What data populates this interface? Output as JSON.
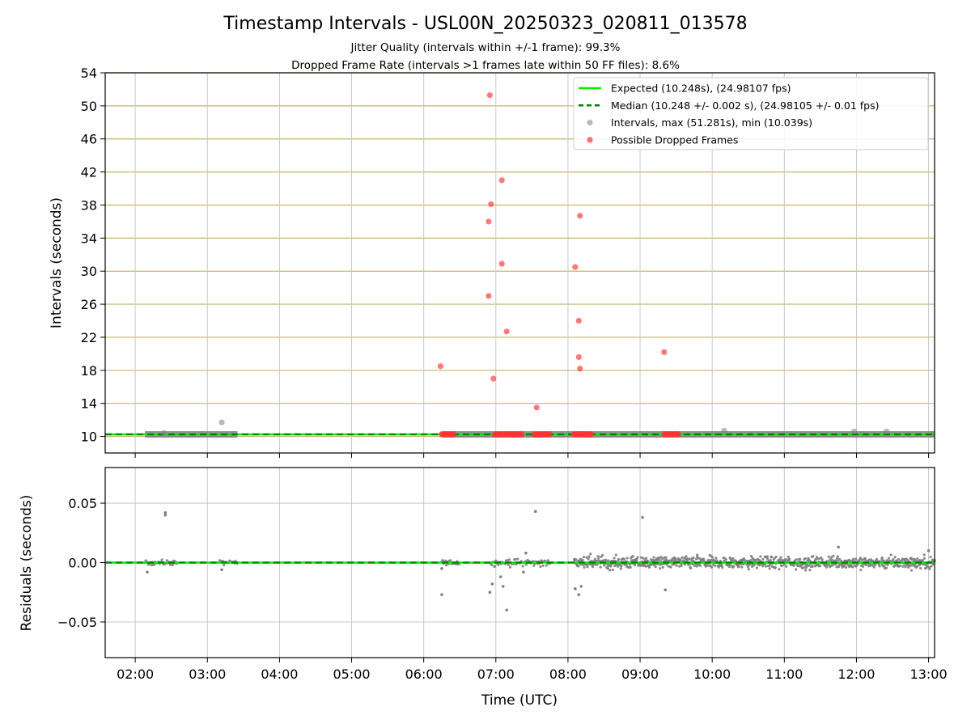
{
  "title": "Timestamp Intervals - USL00N_20250323_020811_013578",
  "subtitle_1": "Jitter Quality (intervals within +/-1 frame): 99.3%",
  "subtitle_2": "Dropped Frame Rate (intervals >1 frames late within 50 FF files): 8.6%",
  "colors": {
    "expected": "#00ee00",
    "median": "#008000",
    "intervals": "#808080",
    "dropped": "#ff3333",
    "hgrid": "#c8b46e",
    "vgrid": "#c8c8c8"
  },
  "chart_data": [
    {
      "type": "scatter",
      "ylabel": "Intervals (seconds)",
      "xlim": [
        "01:35",
        "13:05"
      ],
      "ylim": [
        8,
        54
      ],
      "yticks": [
        "10",
        "14",
        "18",
        "22",
        "26",
        "30",
        "34",
        "38",
        "42",
        "46",
        "50",
        "54"
      ],
      "xticks": [
        "02:00",
        "03:00",
        "04:00",
        "05:00",
        "06:00",
        "07:00",
        "08:00",
        "09:00",
        "10:00",
        "11:00",
        "12:00",
        "13:00"
      ],
      "grid": true,
      "legend_position": "top-right",
      "reference_lines": [
        {
          "name": "Expected (10.248s), (24.98107 fps)",
          "y": 10.248,
          "style": "solid",
          "color": "#00ee00"
        },
        {
          "name": "Median (10.248 +/- 0.002 s), (24.98105 +/- 0.01 fps)",
          "y": 10.248,
          "style": "dashed",
          "color": "#008000"
        }
      ],
      "series": [
        {
          "name": "Intervals, max (51.281s), min (10.039s)",
          "color": "#808080",
          "segments": [
            [
              "02:08",
              "03:25"
            ],
            [
              "06:15",
              "13:05"
            ]
          ],
          "segment_y": 10.248,
          "outliers": [
            {
              "x": "02:24",
              "y": 10.4
            },
            {
              "x": "03:12",
              "y": 11.7
            },
            {
              "x": "10:10",
              "y": 10.7
            },
            {
              "x": "11:58",
              "y": 10.6
            },
            {
              "x": "12:25",
              "y": 10.6
            }
          ]
        },
        {
          "name": "Possible Dropped Frames",
          "color": "#ff3333",
          "clusters": [
            [
              "06:15",
              "06:25"
            ],
            [
              "06:59",
              "07:22"
            ],
            [
              "07:32",
              "07:45"
            ],
            [
              "08:05",
              "08:20"
            ],
            [
              "09:20",
              "09:32"
            ]
          ],
          "cluster_y": 10.25,
          "points": [
            {
              "x": "06:55",
              "y": 51.3
            },
            {
              "x": "07:05",
              "y": 41.0
            },
            {
              "x": "06:56",
              "y": 38.1
            },
            {
              "x": "06:54",
              "y": 36.0
            },
            {
              "x": "08:10",
              "y": 36.7
            },
            {
              "x": "07:05",
              "y": 30.9
            },
            {
              "x": "08:06",
              "y": 30.5
            },
            {
              "x": "06:54",
              "y": 27.0
            },
            {
              "x": "08:09",
              "y": 24.0
            },
            {
              "x": "07:09",
              "y": 22.7
            },
            {
              "x": "09:20",
              "y": 20.2
            },
            {
              "x": "08:09",
              "y": 19.6
            },
            {
              "x": "06:14",
              "y": 18.5
            },
            {
              "x": "08:10",
              "y": 18.2
            },
            {
              "x": "06:58",
              "y": 17.0
            },
            {
              "x": "07:34",
              "y": 13.5
            }
          ]
        }
      ]
    },
    {
      "type": "scatter",
      "xlabel": "Time (UTC)",
      "ylabel": "Residuals (seconds)",
      "xlim": [
        "01:35",
        "13:05"
      ],
      "ylim": [
        -0.08,
        0.08
      ],
      "yticks": [
        "0.05",
        "0.00",
        "−0.05"
      ],
      "xticks": [
        "02:00",
        "03:00",
        "04:00",
        "05:00",
        "06:00",
        "07:00",
        "08:00",
        "09:00",
        "10:00",
        "11:00",
        "12:00",
        "13:00"
      ],
      "grid": true,
      "reference_lines": [
        {
          "y": 0,
          "style": "solid",
          "color": "#00ee00"
        },
        {
          "y": 0,
          "style": "dashed",
          "color": "#008000"
        }
      ],
      "series": [
        {
          "color": "#808080",
          "bands": [
            {
              "from": "02:08",
              "to": "02:35",
              "spread": 0.002
            },
            {
              "from": "03:10",
              "to": "03:25",
              "spread": 0.002
            },
            {
              "from": "06:15",
              "to": "06:30",
              "spread": 0.002
            },
            {
              "from": "06:55",
              "to": "07:45",
              "spread": 0.003
            },
            {
              "from": "08:05",
              "to": "13:05",
              "spread": 0.005
            }
          ],
          "outliers": [
            {
              "x": "02:10",
              "y": -0.008
            },
            {
              "x": "02:25",
              "y": 0.042
            },
            {
              "x": "02:25",
              "y": 0.04
            },
            {
              "x": "03:12",
              "y": -0.006
            },
            {
              "x": "06:15",
              "y": -0.027
            },
            {
              "x": "06:15",
              "y": -0.005
            },
            {
              "x": "06:55",
              "y": -0.025
            },
            {
              "x": "06:57",
              "y": -0.018
            },
            {
              "x": "07:04",
              "y": -0.012
            },
            {
              "x": "07:06",
              "y": -0.02
            },
            {
              "x": "07:09",
              "y": -0.04
            },
            {
              "x": "07:23",
              "y": -0.008
            },
            {
              "x": "07:25",
              "y": 0.008
            },
            {
              "x": "07:33",
              "y": 0.043
            },
            {
              "x": "08:06",
              "y": -0.022
            },
            {
              "x": "08:09",
              "y": -0.027
            },
            {
              "x": "08:11",
              "y": -0.02
            },
            {
              "x": "09:02",
              "y": 0.038
            },
            {
              "x": "09:21",
              "y": -0.023
            },
            {
              "x": "11:45",
              "y": 0.013
            },
            {
              "x": "13:00",
              "y": 0.01
            }
          ]
        }
      ]
    }
  ]
}
